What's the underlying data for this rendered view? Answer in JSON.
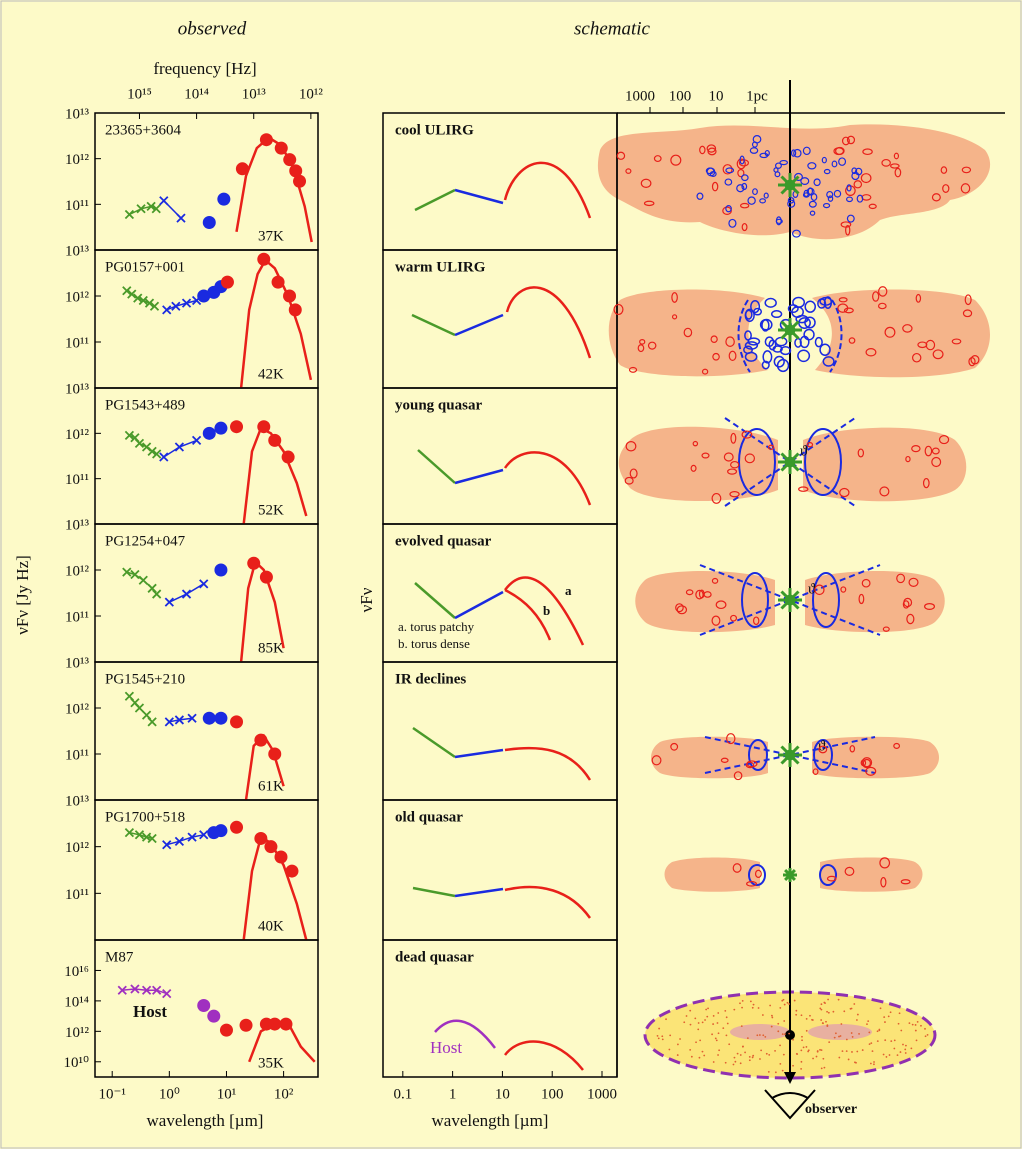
{
  "headers": {
    "observed": "observed",
    "schematic": "schematic"
  },
  "chart_data": {
    "type": "scatter",
    "log_x": true,
    "log_y": true,
    "x_label": "wavelength [µm]",
    "x2_label": "frequency [Hz]",
    "y_label": "νFν [Jy Hz]",
    "xlim": [
      0.05,
      400
    ],
    "xticks": [
      {
        "value": 0.1,
        "label": "10⁻¹"
      },
      {
        "value": 1,
        "label": "10⁰"
      },
      {
        "value": 10,
        "label": "10¹"
      },
      {
        "value": 100,
        "label": "10²"
      }
    ],
    "x2lim": [
      6000000000000000.0,
      750000000000.0
    ],
    "x2ticks": [
      {
        "value": 1000000000000000.0,
        "label": "10¹⁵"
      },
      {
        "value": 100000000000000.0,
        "label": "10¹⁴"
      },
      {
        "value": 10000000000000.0,
        "label": "10¹³"
      },
      {
        "value": 1000000000000.0,
        "label": "10¹²"
      }
    ],
    "panels": [
      {
        "name": "23365+3604",
        "temperature": "37K",
        "ylim": [
          10000000000.0,
          10000000000000.0
        ],
        "yticks": [
          {
            "value": 100000000000.0,
            "label": "10¹¹"
          },
          {
            "value": 1000000000000.0,
            "label": "10¹²"
          },
          {
            "value": 10000000000000.0,
            "label": "10¹³"
          }
        ],
        "series": [
          {
            "color": "#4a9a2a",
            "marker": "cross",
            "line": true,
            "x": [
              0.2,
              0.32,
              0.48,
              0.59
            ],
            "values": [
              60000000000.0,
              80000000000.0,
              90000000000.0,
              80000000000.0
            ]
          },
          {
            "color": "#1a2ae0",
            "marker": "cross",
            "line": true,
            "x": [
              0.8,
              1.6
            ],
            "values": [
              120000000000.0,
              50000000000.0
            ]
          },
          {
            "color": "#1a2ae0",
            "marker": "dot",
            "x": [
              5,
              9
            ],
            "values": [
              40000000000.0,
              130000000000.0
            ]
          },
          {
            "color": "#e8201a",
            "marker": "dot",
            "x": [
              19,
              50,
              91,
              128,
              163,
              190
            ],
            "values": [
              600000000000.0,
              2600000000000.0,
              1700000000000.0,
              950000000000.0,
              540000000000.0,
              320000000000.0
            ]
          },
          {
            "color": "#e8201a",
            "marker": "line",
            "x": [
              15,
              22,
              34,
              55,
              91,
              150,
              234,
              310
            ],
            "values": [
              25000000000.0,
              420000000000.0,
              1700000000000.0,
              2900000000000.0,
              1950000000000.0,
              600000000000.0,
              90000000000.0,
              15000000000.0
            ]
          }
        ]
      },
      {
        "name": "PG0157+001",
        "temperature": "42K",
        "ylim": [
          10000000000.0,
          10000000000000.0
        ],
        "yticks": [
          {
            "value": 100000000000.0,
            "label": "10¹¹"
          },
          {
            "value": 1000000000000.0,
            "label": "10¹²"
          },
          {
            "value": 10000000000000.0,
            "label": "10¹³"
          }
        ],
        "series": [
          {
            "color": "#4a9a2a",
            "marker": "cross",
            "line": true,
            "x": [
              0.18,
              0.22,
              0.28,
              0.35,
              0.45,
              0.55
            ],
            "values": [
              1300000000000.0,
              1100000000000.0,
              900000000000.0,
              800000000000.0,
              700000000000.0,
              600000000000.0
            ]
          },
          {
            "color": "#1a2ae0",
            "marker": "cross",
            "line": true,
            "x": [
              0.9,
              1.3,
              2,
              3
            ],
            "values": [
              500000000000.0,
              600000000000.0,
              700000000000.0,
              800000000000.0
            ]
          },
          {
            "color": "#1a2ae0",
            "marker": "dot",
            "x": [
              4,
              6,
              8
            ],
            "values": [
              1000000000000.0,
              1200000000000.0,
              1600000000000.0
            ]
          },
          {
            "color": "#e8201a",
            "marker": "dot",
            "x": [
              10.4,
              45,
              80,
              127,
              160
            ],
            "values": [
              2000000000000.0,
              6300000000000.0,
              2000000000000.0,
              1000000000000.0,
              500000000000.0
            ]
          },
          {
            "color": "#e8201a",
            "marker": "line",
            "x": [
              18,
              25,
              35,
              48,
              70,
              120,
              200,
              300
            ],
            "values": [
              10000000000.0,
              500000000000.0,
              3000000000000.0,
              6000000000000.0,
              4000000000000.0,
              1000000000000.0,
              150000000000.0,
              15000000000.0
            ]
          }
        ]
      },
      {
        "name": "PG1543+489",
        "temperature": "52K",
        "ylim": [
          10000000000.0,
          10000000000000.0
        ],
        "yticks": [
          {
            "value": 100000000000.0,
            "label": "10¹¹"
          },
          {
            "value": 1000000000000.0,
            "label": "10¹²"
          },
          {
            "value": 10000000000000.0,
            "label": "10¹³"
          }
        ],
        "series": [
          {
            "color": "#4a9a2a",
            "marker": "cross",
            "line": true,
            "x": [
              0.2,
              0.25,
              0.3,
              0.4,
              0.5,
              0.6
            ],
            "values": [
              900000000000.0,
              800000000000.0,
              600000000000.0,
              500000000000.0,
              400000000000.0,
              350000000000.0
            ]
          },
          {
            "color": "#1a2ae0",
            "marker": "cross",
            "line": true,
            "x": [
              0.8,
              1.5,
              3
            ],
            "values": [
              300000000000.0,
              500000000000.0,
              700000000000.0
            ]
          },
          {
            "color": "#1a2ae0",
            "marker": "dot",
            "x": [
              5,
              8
            ],
            "values": [
              1000000000000.0,
              1300000000000.0
            ]
          },
          {
            "color": "#e8201a",
            "marker": "dot",
            "x": [
              15,
              45,
              70,
              120
            ],
            "values": [
              1400000000000.0,
              1400000000000.0,
              700000000000.0,
              300000000000.0
            ]
          },
          {
            "color": "#e8201a",
            "marker": "line",
            "x": [
              20,
              28,
              40,
              60,
              100,
              170,
              250
            ],
            "values": [
              10000000000.0,
              400000000000.0,
              1300000000000.0,
              1000000000000.0,
              400000000000.0,
              80000000000.0,
              15000000000.0
            ]
          }
        ]
      },
      {
        "name": "PG1254+047",
        "temperature": "85K",
        "ylim": [
          10000000000.0,
          10000000000000.0
        ],
        "yticks": [
          {
            "value": 100000000000.0,
            "label": "10¹¹"
          },
          {
            "value": 1000000000000.0,
            "label": "10¹²"
          },
          {
            "value": 10000000000000.0,
            "label": "10¹³"
          }
        ],
        "series": [
          {
            "color": "#4a9a2a",
            "marker": "cross",
            "line": true,
            "x": [
              0.18,
              0.25,
              0.35,
              0.5,
              0.6
            ],
            "values": [
              900000000000.0,
              800000000000.0,
              600000000000.0,
              400000000000.0,
              300000000000.0
            ]
          },
          {
            "color": "#1a2ae0",
            "marker": "cross",
            "line": true,
            "x": [
              1,
              2,
              4
            ],
            "values": [
              200000000000.0,
              300000000000.0,
              500000000000.0
            ]
          },
          {
            "color": "#1a2ae0",
            "marker": "dot",
            "x": [
              8
            ],
            "values": [
              1000000000000.0
            ]
          },
          {
            "color": "#e8201a",
            "marker": "dot",
            "x": [
              30,
              50
            ],
            "values": [
              1400000000000.0,
              700000000000.0
            ]
          },
          {
            "color": "#e8201a",
            "marker": "line",
            "x": [
              18,
              24,
              32,
              45,
              70,
              100
            ],
            "values": [
              10000000000.0,
              400000000000.0,
              1500000000000.0,
              1000000000000.0,
              200000000000.0,
              20000000000.0
            ]
          }
        ]
      },
      {
        "name": "PG1545+210",
        "temperature": "61K",
        "ylim": [
          10000000000.0,
          10000000000000.0
        ],
        "yticks": [
          {
            "value": 100000000000.0,
            "label": "10¹¹"
          },
          {
            "value": 1000000000000.0,
            "label": "10¹²"
          },
          {
            "value": 10000000000000.0,
            "label": "10¹³"
          }
        ],
        "series": [
          {
            "color": "#4a9a2a",
            "marker": "cross",
            "line": true,
            "x": [
              0.2,
              0.25,
              0.3,
              0.4,
              0.5
            ],
            "values": [
              1800000000000.0,
              1300000000000.0,
              1000000000000.0,
              700000000000.0,
              500000000000.0
            ]
          },
          {
            "color": "#1a2ae0",
            "marker": "cross",
            "line": true,
            "x": [
              1,
              1.5,
              2.5
            ],
            "values": [
              500000000000.0,
              550000000000.0,
              600000000000.0
            ]
          },
          {
            "color": "#1a2ae0",
            "marker": "dot",
            "x": [
              5,
              8
            ],
            "values": [
              600000000000.0,
              600000000000.0
            ]
          },
          {
            "color": "#e8201a",
            "marker": "dot",
            "x": [
              15,
              40,
              70
            ],
            "values": [
              500000000000.0,
              200000000000.0,
              100000000000.0
            ]
          },
          {
            "color": "#e8201a",
            "marker": "line",
            "x": [
              22,
              30,
              45,
              65,
              100
            ],
            "values": [
              10000000000.0,
              150000000000.0,
              250000000000.0,
              120000000000.0,
              20000000000.0
            ]
          }
        ]
      },
      {
        "name": "PG1700+518",
        "temperature": "40K",
        "ylim": [
          10000000000.0,
          10000000000000.0
        ],
        "yticks": [
          {
            "value": 100000000000.0,
            "label": "10¹¹"
          },
          {
            "value": 1000000000000.0,
            "label": "10¹²"
          },
          {
            "value": 10000000000000.0,
            "label": "10¹³"
          }
        ],
        "series": [
          {
            "color": "#4a9a2a",
            "marker": "cross",
            "line": true,
            "x": [
              0.2,
              0.3,
              0.4,
              0.5
            ],
            "values": [
              2000000000000.0,
              1800000000000.0,
              1600000000000.0,
              1500000000000.0
            ]
          },
          {
            "color": "#1a2ae0",
            "marker": "cross",
            "line": true,
            "x": [
              0.9,
              1.5,
              2.5,
              4
            ],
            "values": [
              1100000000000.0,
              1300000000000.0,
              1600000000000.0,
              1800000000000.0
            ]
          },
          {
            "color": "#1a2ae0",
            "marker": "dot",
            "x": [
              6,
              8
            ],
            "values": [
              2000000000000.0,
              2200000000000.0
            ]
          },
          {
            "color": "#e8201a",
            "marker": "dot",
            "x": [
              15,
              40,
              60,
              90,
              140
            ],
            "values": [
              2600000000000.0,
              1500000000000.0,
              1000000000000.0,
              600000000000.0,
              300000000000.0
            ]
          },
          {
            "color": "#e8201a",
            "marker": "line",
            "x": [
              20,
              28,
              40,
              60,
              100,
              170,
              250
            ],
            "values": [
              10000000000.0,
              300000000000.0,
              1600000000000.0,
              1200000000000.0,
              400000000000.0,
              60000000000.0,
              10000000000.0
            ]
          }
        ]
      },
      {
        "name": "M87",
        "temperature": "35K",
        "annotation": "Host",
        "annotation_color": "#a030c0",
        "ylim": [
          1000000000.0,
          1e+18
        ],
        "yticks": [
          {
            "value": 10000000000.0,
            "label": "10¹⁰"
          },
          {
            "value": 1000000000000.0,
            "label": "10¹²"
          },
          {
            "value": 100000000000000.0,
            "label": "10¹⁴"
          },
          {
            "value": 1e+16,
            "label": "10¹⁶"
          }
        ],
        "series": [
          {
            "color": "#a030c0",
            "marker": "cross",
            "line": true,
            "x": [
              0.15,
              0.25,
              0.4,
              0.6,
              0.9
            ],
            "values": [
              500000000000000.0,
              600000000000000.0,
              500000000000000.0,
              500000000000000.0,
              300000000000000.0
            ]
          },
          {
            "color": "#a030c0",
            "marker": "dot",
            "x": [
              4,
              6
            ],
            "values": [
              50000000000000.0,
              10000000000000.0
            ]
          },
          {
            "color": "#e8201a",
            "marker": "dot",
            "x": [
              10,
              22,
              50,
              70,
              110
            ],
            "values": [
              1200000000000.0,
              2500000000000.0,
              3000000000000.0,
              3000000000000.0,
              3000000000000.0
            ]
          },
          {
            "color": "#e8201a",
            "marker": "line",
            "x": [
              25,
              40,
              70,
              130,
              200,
              350
            ],
            "values": [
              10000000000.0,
              1000000000000.0,
              3000000000000.0,
              2000000000000.0,
              100000000000.0,
              10000000000.0
            ]
          }
        ]
      }
    ]
  },
  "schematic": {
    "x_label": "wavelength [µm]",
    "y_label": "νFν",
    "xlim": [
      0.04,
      2000
    ],
    "xticks": [
      0.1,
      1,
      10,
      100,
      1000
    ],
    "panels": [
      "cool ULIRG",
      "warm ULIRG",
      "young quasar",
      "evolved quasar",
      "IR declines",
      "old quasar",
      "dead quasar"
    ],
    "notes": [
      "a. torus patchy",
      "b. torus dense"
    ],
    "curve_labels": [
      "a",
      "b"
    ],
    "host": "Host"
  },
  "sketch": {
    "scale": [
      "1000",
      "100",
      "10",
      "1pc"
    ],
    "theta": "ϑ",
    "observer": "observer"
  }
}
